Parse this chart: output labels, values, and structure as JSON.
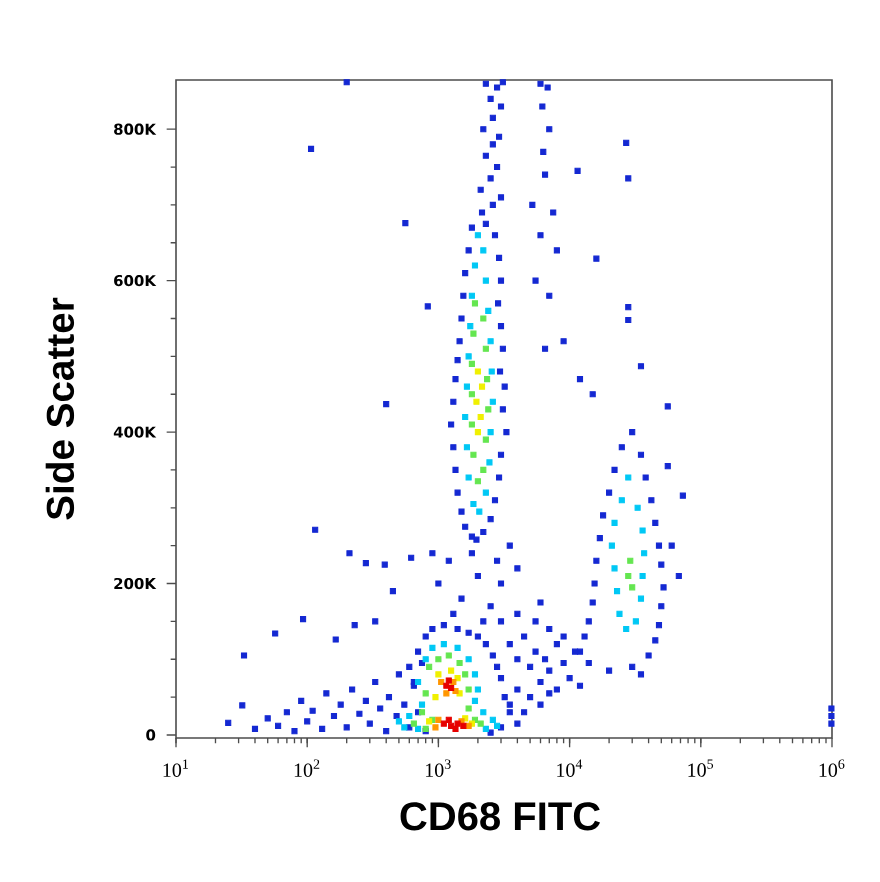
{
  "chart_data": {
    "type": "scatter",
    "xlabel": "CD68 FITC",
    "ylabel": "Side Scatter",
    "log": "x",
    "marker": "square",
    "xlim": [
      10,
      1000000
    ],
    "ylim": [
      -4000,
      865000
    ],
    "xticks": [
      {
        "value": 10,
        "label": "10$^{1}$"
      },
      {
        "value": 100,
        "label": "10$^{2}$"
      },
      {
        "value": 1000,
        "label": "10$^{3}$"
      },
      {
        "value": 10000,
        "label": "10$^{4}$"
      },
      {
        "value": 100000,
        "label": "10$^{5}$"
      },
      {
        "value": 1000000,
        "label": "10$^{6}$"
      }
    ],
    "yticks": [
      0,
      {
        "value": 200000,
        "label": "200K"
      },
      {
        "value": 400000,
        "label": "400K"
      },
      {
        "value": 600000,
        "label": "600K"
      },
      {
        "value": 800000,
        "label": "800K"
      }
    ],
    "series": [
      {
        "color": "#1428d2",
        "x": [
          2300,
          2800,
          3100,
          2500,
          3000,
          2600,
          2200,
          2900,
          2600,
          2300,
          2800,
          2500,
          2100,
          3000,
          2600,
          2150,
          2300,
          1800,
          2700,
          1700,
          2900,
          1600,
          3000,
          1550,
          2850,
          1500,
          3000,
          1450,
          3100,
          1400,
          2950,
          1350,
          3200,
          1300,
          3100,
          1250,
          3300,
          1300,
          3000,
          1350,
          2900,
          1400,
          2700,
          1500,
          2500,
          1600,
          2200,
          1800,
          1950,
          6000,
          6800,
          6200,
          7000,
          6300,
          6500,
          5200,
          7500,
          6000,
          8000,
          5500,
          7000,
          9000,
          12000,
          15000,
          6500,
          27000,
          28000,
          11500,
          16000,
          28000,
          28000,
          35000,
          56000,
          107,
          560,
          830,
          400,
          200,
          30000,
          25000,
          35000,
          22000,
          38000,
          20000,
          42000,
          18000,
          45000,
          17000,
          48000,
          16000,
          50000,
          15500,
          52000,
          15000,
          50000,
          14000,
          48000,
          13000,
          45000,
          12000,
          40000,
          14000,
          30000,
          20000,
          35000,
          60000,
          68000,
          73000,
          56000,
          3500,
          4000,
          4500,
          5000,
          5500,
          6000,
          6500,
          7000,
          8000,
          8000,
          9000,
          10000,
          11000,
          12000,
          4000,
          5000,
          6000,
          7000,
          3500,
          4500,
          9000,
          7000,
          5500,
          4000,
          6000,
          3000,
          1000,
          1200,
          1500,
          2000,
          2500,
          1800,
          3000,
          2200,
          1300,
          900,
          3500,
          4000,
          2800,
          210,
          280,
          115,
          390,
          620,
          450,
          330,
          93,
          57,
          33,
          165,
          230,
          25,
          32,
          40,
          50,
          60,
          70,
          80,
          90,
          100,
          110,
          130,
          140,
          160,
          180,
          200,
          220,
          250,
          280,
          300,
          330,
          360,
          400,
          420,
          480,
          500,
          550,
          600,
          650,
          700,
          750,
          800,
          700,
          800,
          900,
          1100,
          1400,
          1700,
          2000,
          2300,
          2600,
          2800,
          3000,
          3200,
          3500,
          4000,
          3000,
          2500,
          650,
          600,
          990000,
          990000,
          990000
        ],
        "values": [
          860000,
          855000,
          862000,
          840000,
          830000,
          815000,
          800000,
          790000,
          780000,
          765000,
          750000,
          735000,
          720000,
          710000,
          700000,
          690000,
          675000,
          670000,
          660000,
          640000,
          630000,
          610000,
          600000,
          580000,
          570000,
          550000,
          540000,
          520000,
          510000,
          495000,
          480000,
          470000,
          460000,
          440000,
          430000,
          410000,
          400000,
          380000,
          370000,
          350000,
          340000,
          320000,
          310000,
          295000,
          285000,
          275000,
          268000,
          262000,
          258000,
          860000,
          855000,
          830000,
          800000,
          770000,
          740000,
          700000,
          690000,
          660000,
          640000,
          600000,
          580000,
          520000,
          470000,
          450000,
          510000,
          782000,
          735000,
          745000,
          629000,
          565000,
          548000,
          487000,
          434000,
          774000,
          676000,
          566000,
          437000,
          862000,
          400000,
          380000,
          370000,
          350000,
          340000,
          320000,
          310000,
          290000,
          280000,
          260000,
          250000,
          230000,
          225000,
          200000,
          195000,
          175000,
          170000,
          150000,
          145000,
          130000,
          125000,
          110000,
          105000,
          95000,
          90000,
          85000,
          80000,
          250000,
          210000,
          316000,
          355000,
          120000,
          100000,
          130000,
          90000,
          110000,
          70000,
          100000,
          85000,
          60000,
          120000,
          95000,
          75000,
          110000,
          65000,
          60000,
          50000,
          40000,
          55000,
          40000,
          30000,
          130000,
          140000,
          150000,
          160000,
          175000,
          150000,
          200000,
          230000,
          180000,
          210000,
          170000,
          240000,
          200000,
          150000,
          160000,
          240000,
          250000,
          220000,
          230000,
          240000,
          227000,
          271000,
          225000,
          234000,
          190000,
          150000,
          153000,
          134000,
          105000,
          126000,
          145000,
          16000,
          39000,
          8000,
          22000,
          12000,
          30000,
          5000,
          45000,
          18000,
          32000,
          8000,
          55000,
          25000,
          40000,
          10000,
          60000,
          28000,
          45000,
          15000,
          70000,
          35000,
          5000,
          50000,
          25000,
          80000,
          40000,
          10000,
          65000,
          30000,
          95000,
          5000,
          110000,
          130000,
          140000,
          145000,
          140000,
          135000,
          130000,
          120000,
          105000,
          90000,
          75000,
          50000,
          30000,
          15000,
          10000,
          3000,
          70000,
          90000,
          15000,
          25000,
          35000
        ]
      },
      {
        "color": "#00c8f5",
        "x": [
          2000,
          2200,
          1900,
          2300,
          1800,
          2400,
          1750,
          2500,
          1700,
          2550,
          1650,
          2600,
          1600,
          2500,
          1650,
          2450,
          1700,
          2300,
          1850,
          2050,
          28000,
          25000,
          33000,
          22000,
          36000,
          21000,
          37000,
          22000,
          36000,
          23000,
          35000,
          24000,
          32000,
          27000,
          800,
          900,
          1100,
          1400,
          1700,
          1900,
          2000,
          1900,
          700,
          750,
          600,
          700,
          2200,
          2600,
          2800,
          2300,
          550,
          500
        ],
        "values": [
          660000,
          640000,
          620000,
          600000,
          580000,
          560000,
          540000,
          520000,
          500000,
          480000,
          460000,
          440000,
          420000,
          400000,
          380000,
          360000,
          340000,
          320000,
          305000,
          295000,
          340000,
          310000,
          300000,
          280000,
          270000,
          250000,
          240000,
          220000,
          210000,
          190000,
          180000,
          160000,
          150000,
          140000,
          100000,
          115000,
          120000,
          115000,
          100000,
          80000,
          60000,
          45000,
          70000,
          40000,
          25000,
          8000,
          30000,
          20000,
          12000,
          8000,
          10000,
          18000
        ]
      },
      {
        "color": "#64e650",
        "x": [
          1900,
          2200,
          1850,
          2300,
          1800,
          2350,
          1800,
          2400,
          1800,
          2300,
          1850,
          2200,
          2000,
          29000,
          28000,
          30000,
          850,
          1000,
          1200,
          1450,
          1600,
          1700,
          800,
          750,
          900,
          1700,
          1900,
          2100,
          650,
          800
        ],
        "values": [
          570000,
          550000,
          530000,
          510000,
          490000,
          470000,
          450000,
          430000,
          410000,
          390000,
          370000,
          350000,
          335000,
          230000,
          210000,
          195000,
          90000,
          100000,
          105000,
          95000,
          80000,
          60000,
          55000,
          30000,
          20000,
          35000,
          20000,
          15000,
          15000,
          8000
        ]
      },
      {
        "color": "#f0f000",
        "x": [
          2000,
          2150,
          1950,
          2100,
          2000,
          1000,
          1250,
          1400,
          950,
          1450,
          850,
          1600,
          1800
        ],
        "values": [
          480000,
          460000,
          440000,
          420000,
          400000,
          80000,
          85000,
          75000,
          50000,
          55000,
          18000,
          22000,
          15000
        ]
      },
      {
        "color": "#ff9600",
        "x": [
          1050,
          1300,
          1150,
          1350,
          1000,
          1500,
          1700,
          950
        ],
        "values": [
          70000,
          70000,
          55000,
          58000,
          20000,
          18000,
          12000,
          10000
        ]
      },
      {
        "color": "#e60000",
        "x": [
          1150,
          1250,
          1200,
          1100,
          1250,
          1400,
          1550,
          1350,
          1200
        ],
        "values": [
          65000,
          62000,
          72000,
          15000,
          12000,
          15000,
          12000,
          8000,
          20000
        ]
      }
    ]
  }
}
